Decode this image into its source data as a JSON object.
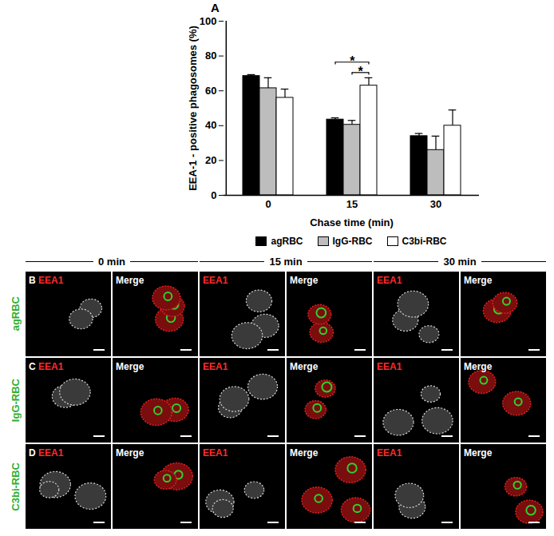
{
  "chart_data": {
    "type": "bar",
    "panel_label": "A",
    "x_label": "Chase time (min)",
    "y_label": "EEA-1 - positive phagosomes (%)",
    "categories": [
      "0",
      "15",
      "30"
    ],
    "series": [
      {
        "name": "agRBC",
        "color": "#000000",
        "values": [
          68.5,
          43.5,
          34
        ],
        "errors": [
          0.8,
          1,
          1.5
        ]
      },
      {
        "name": "IgG-RBC",
        "color": "#bdbdbd",
        "values": [
          61.5,
          40.5,
          26
        ],
        "errors": [
          6,
          2.5,
          8
        ]
      },
      {
        "name": "C3bi-RBC",
        "color": "#ffffff",
        "values": [
          56,
          63,
          40
        ],
        "errors": [
          5,
          4.5,
          9
        ]
      }
    ],
    "ylim": [
      0,
      100
    ],
    "yticks": [
      0,
      20,
      40,
      60,
      80,
      100
    ],
    "legend": "bottom",
    "annotations": [
      {
        "text": "*",
        "category": "15",
        "between": [
          "agRBC",
          "C3bi-RBC"
        ]
      },
      {
        "text": "*",
        "category": "15",
        "between": [
          "IgG-RBC",
          "C3bi-RBC"
        ]
      }
    ]
  },
  "image_panels": {
    "columns": [
      "0 min",
      "15 min",
      "30 min"
    ],
    "channels": [
      "EEA1",
      "Merge"
    ],
    "rows": [
      {
        "letter": "B",
        "label": "agRBC"
      },
      {
        "letter": "C",
        "label": "IgG-RBC"
      },
      {
        "letter": "D",
        "label": "C3bi-RBC"
      }
    ]
  }
}
